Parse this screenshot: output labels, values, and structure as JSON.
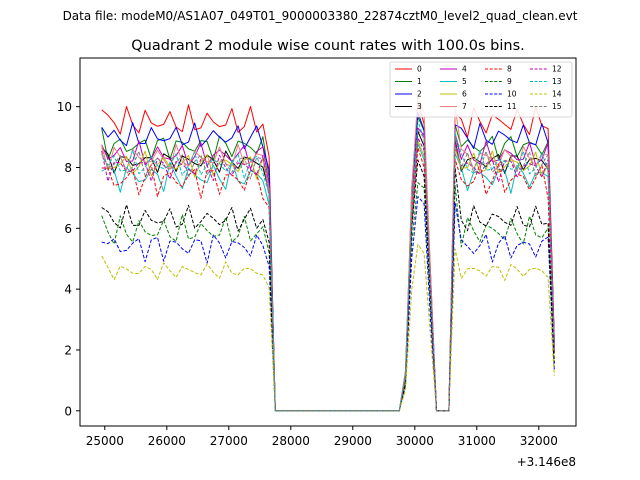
{
  "chart_data": {
    "type": "line",
    "suptitle": "Data file: modeM0/AS1A07_049T01_9000003380_22874cztM0_level2_quad_clean.evt",
    "title": "Quadrant 2 module wise count rates with 100.0s bins.",
    "xlabel": "",
    "ylabel": "",
    "x_offset_label": "+3.146e8",
    "xlim": [
      24600,
      32600
    ],
    "ylim": [
      -0.5,
      11.6
    ],
    "xticks": [
      "25000",
      "26000",
      "27000",
      "28000",
      "29000",
      "30000",
      "31000",
      "32000"
    ],
    "yticks": [
      "0",
      "2",
      "4",
      "6",
      "8",
      "10"
    ],
    "x_start": 24950,
    "x_step": 100,
    "n_points": 74,
    "gti_segments": [
      [
        0,
        27
      ],
      [
        49,
        53
      ],
      [
        57,
        73
      ]
    ],
    "legend_location": "top-right",
    "series": [
      {
        "name": "0",
        "color": "#ff0000",
        "dash": false,
        "level": 9.5,
        "amp": 0.35,
        "seg2_peak": 10.3
      },
      {
        "name": "1",
        "color": "#008000",
        "dash": false,
        "level": 8.7,
        "amp": 0.3,
        "seg2_peak": 9.9
      },
      {
        "name": "2",
        "color": "#0000ff",
        "dash": false,
        "level": 9.0,
        "amp": 0.3,
        "seg2_peak": 9.9
      },
      {
        "name": "3",
        "color": "#000000",
        "dash": false,
        "level": 8.2,
        "amp": 0.25,
        "seg2_peak": 9.4
      },
      {
        "name": "4",
        "color": "#bf00bf",
        "dash": false,
        "level": 8.4,
        "amp": 0.3,
        "seg2_peak": 9.6
      },
      {
        "name": "5",
        "color": "#00bfbf",
        "dash": false,
        "level": 7.7,
        "amp": 0.35,
        "seg2_peak": 8.9
      },
      {
        "name": "6",
        "color": "#bfbf00",
        "dash": false,
        "level": 8.1,
        "amp": 0.3,
        "seg2_peak": 9.1
      },
      {
        "name": "7",
        "color": "#f08080",
        "dash": false,
        "level": 8.3,
        "amp": 0.3,
        "seg2_peak": 10.5
      },
      {
        "name": "8",
        "color": "#ff0000",
        "dash": true,
        "level": 7.6,
        "amp": 0.4,
        "seg2_peak": 8.7
      },
      {
        "name": "9",
        "color": "#008000",
        "dash": true,
        "level": 5.9,
        "amp": 0.35,
        "seg2_peak": 7.8
      },
      {
        "name": "10",
        "color": "#0000ff",
        "dash": true,
        "level": 5.4,
        "amp": 0.35,
        "seg2_peak": 7.2
      },
      {
        "name": "11",
        "color": "#000000",
        "dash": true,
        "level": 6.3,
        "amp": 0.3,
        "seg2_peak": 8.4
      },
      {
        "name": "12",
        "color": "#bf00bf",
        "dash": true,
        "level": 8.0,
        "amp": 0.3,
        "seg2_peak": 9.2
      },
      {
        "name": "13",
        "color": "#00bfbf",
        "dash": true,
        "level": 8.1,
        "amp": 0.3,
        "seg2_peak": 9.6
      },
      {
        "name": "14",
        "color": "#bfbf00",
        "dash": true,
        "level": 4.6,
        "amp": 0.2,
        "seg2_peak": 5.6
      },
      {
        "name": "15",
        "color": "#808080",
        "dash": true,
        "level": 8.1,
        "amp": 0.3,
        "seg2_peak": 9.5
      }
    ]
  }
}
